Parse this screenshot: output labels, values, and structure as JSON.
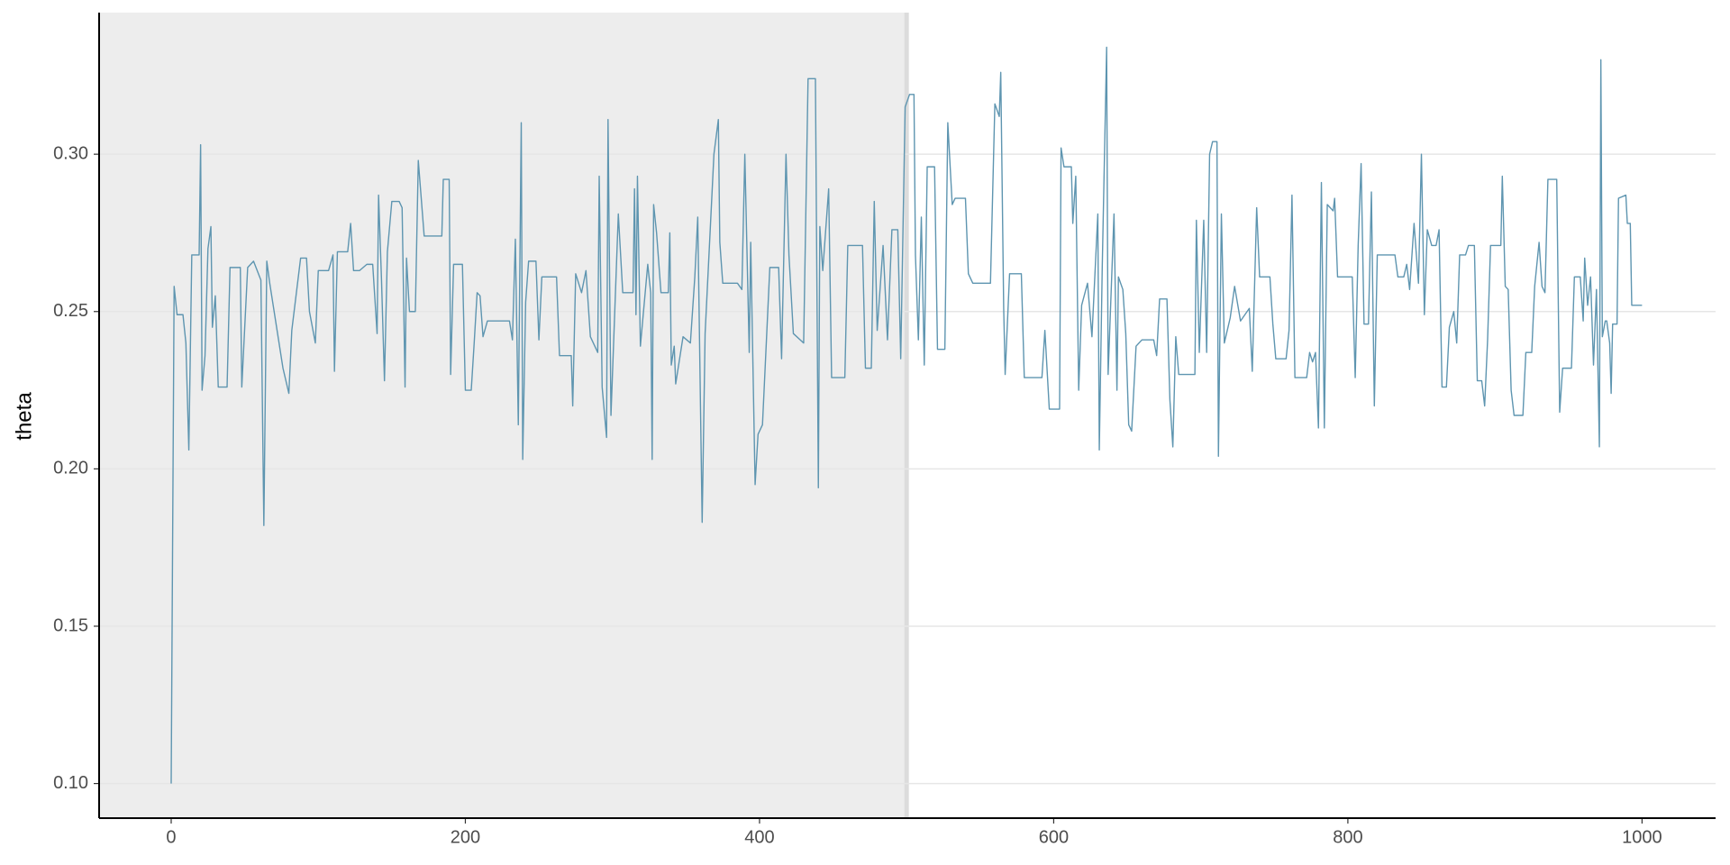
{
  "chart_data": {
    "type": "line",
    "y_label": "theta",
    "x": [
      0,
      2,
      4,
      8,
      10,
      12,
      14,
      19,
      20,
      21,
      23,
      25,
      27,
      28,
      30,
      32,
      38,
      40,
      47,
      48,
      52,
      56,
      61,
      63,
      65,
      67,
      72,
      76,
      80,
      82,
      88,
      92,
      94,
      98,
      100,
      107,
      110,
      111,
      113,
      120,
      122,
      124,
      128,
      133,
      137,
      140,
      141,
      143,
      145,
      147,
      150,
      155,
      157,
      159,
      160,
      162,
      166,
      168,
      172,
      184,
      185,
      189,
      190,
      192,
      198,
      200,
      204,
      206,
      208,
      210,
      212,
      215,
      230,
      232,
      234,
      236,
      238,
      239,
      241,
      243,
      248,
      250,
      252,
      262,
      264,
      272,
      273,
      275,
      279,
      282,
      285,
      290,
      291,
      293,
      296,
      297,
      299,
      304,
      307,
      314,
      315,
      316,
      317,
      319,
      324,
      326,
      327,
      328,
      330,
      333,
      338,
      339,
      340,
      342,
      343,
      348,
      353,
      356,
      358,
      361,
      363,
      369,
      372,
      373,
      375,
      385,
      388,
      390,
      393,
      394,
      397,
      399,
      402,
      407,
      413,
      415,
      418,
      420,
      423,
      430,
      433,
      438,
      440,
      441,
      443,
      447,
      449,
      458,
      460,
      470,
      472,
      476,
      478,
      480,
      484,
      487,
      490,
      494,
      496,
      499,
      502,
      505,
      506,
      508,
      510,
      512,
      514,
      519,
      521,
      526,
      528,
      531,
      533,
      540,
      542,
      545,
      557,
      560,
      563,
      564,
      566,
      567,
      570,
      578,
      580,
      592,
      594,
      597,
      604,
      605,
      607,
      612,
      613,
      615,
      617,
      619,
      623,
      626,
      630,
      631,
      633,
      636,
      637,
      641,
      643,
      644,
      647,
      649,
      651,
      653,
      656,
      660,
      668,
      670,
      672,
      677,
      679,
      681,
      683,
      685,
      696,
      697,
      699,
      702,
      704,
      706,
      708,
      711,
      712,
      714,
      716,
      720,
      723,
      727,
      733,
      735,
      738,
      740,
      747,
      749,
      751,
      758,
      760,
      762,
      764,
      772,
      774,
      776,
      778,
      780,
      782,
      784,
      786,
      790,
      791,
      793,
      803,
      805,
      807,
      809,
      811,
      814,
      816,
      818,
      820,
      832,
      834,
      838,
      840,
      842,
      845,
      848,
      850,
      852,
      854,
      857,
      860,
      862,
      864,
      867,
      869,
      872,
      874,
      876,
      880,
      882,
      886,
      888,
      891,
      893,
      895,
      897,
      904,
      905,
      907,
      909,
      911,
      913,
      919,
      921,
      925,
      927,
      930,
      932,
      934,
      936,
      942,
      944,
      946,
      952,
      954,
      958,
      960,
      961,
      963,
      965,
      967,
      969,
      971,
      972,
      973,
      975,
      976,
      978,
      979,
      980,
      983,
      984,
      989,
      990,
      992,
      993,
      1000
    ],
    "series": [
      {
        "name": "theta",
        "color": "#5e95b0",
        "values": [
          0.1,
          0.258,
          0.249,
          0.249,
          0.24,
          0.206,
          0.268,
          0.268,
          0.303,
          0.225,
          0.236,
          0.27,
          0.277,
          0.245,
          0.255,
          0.226,
          0.226,
          0.264,
          0.264,
          0.226,
          0.264,
          0.266,
          0.26,
          0.182,
          0.266,
          0.259,
          0.244,
          0.232,
          0.224,
          0.244,
          0.267,
          0.267,
          0.25,
          0.24,
          0.263,
          0.263,
          0.268,
          0.231,
          0.269,
          0.269,
          0.278,
          0.263,
          0.263,
          0.265,
          0.265,
          0.243,
          0.287,
          0.26,
          0.228,
          0.269,
          0.285,
          0.285,
          0.283,
          0.226,
          0.267,
          0.25,
          0.25,
          0.298,
          0.274,
          0.274,
          0.292,
          0.292,
          0.23,
          0.265,
          0.265,
          0.225,
          0.225,
          0.24,
          0.256,
          0.255,
          0.242,
          0.247,
          0.247,
          0.241,
          0.273,
          0.214,
          0.31,
          0.203,
          0.253,
          0.266,
          0.266,
          0.241,
          0.261,
          0.261,
          0.236,
          0.236,
          0.22,
          0.262,
          0.256,
          0.263,
          0.242,
          0.237,
          0.293,
          0.226,
          0.21,
          0.311,
          0.217,
          0.281,
          0.256,
          0.256,
          0.289,
          0.249,
          0.293,
          0.239,
          0.265,
          0.256,
          0.203,
          0.284,
          0.275,
          0.256,
          0.256,
          0.275,
          0.233,
          0.239,
          0.227,
          0.242,
          0.24,
          0.261,
          0.28,
          0.183,
          0.243,
          0.3,
          0.311,
          0.272,
          0.259,
          0.259,
          0.257,
          0.3,
          0.237,
          0.272,
          0.195,
          0.211,
          0.214,
          0.264,
          0.264,
          0.235,
          0.3,
          0.268,
          0.243,
          0.24,
          0.324,
          0.324,
          0.194,
          0.277,
          0.263,
          0.289,
          0.229,
          0.229,
          0.271,
          0.271,
          0.232,
          0.232,
          0.285,
          0.244,
          0.271,
          0.241,
          0.276,
          0.276,
          0.235,
          0.315,
          0.319,
          0.319,
          0.268,
          0.241,
          0.28,
          0.233,
          0.296,
          0.296,
          0.238,
          0.238,
          0.31,
          0.284,
          0.286,
          0.286,
          0.262,
          0.259,
          0.259,
          0.316,
          0.312,
          0.326,
          0.251,
          0.23,
          0.262,
          0.262,
          0.229,
          0.229,
          0.244,
          0.219,
          0.219,
          0.302,
          0.296,
          0.296,
          0.278,
          0.293,
          0.225,
          0.252,
          0.259,
          0.242,
          0.281,
          0.206,
          0.264,
          0.334,
          0.23,
          0.281,
          0.225,
          0.261,
          0.257,
          0.243,
          0.214,
          0.212,
          0.239,
          0.241,
          0.241,
          0.236,
          0.254,
          0.254,
          0.222,
          0.207,
          0.242,
          0.23,
          0.23,
          0.279,
          0.237,
          0.279,
          0.237,
          0.3,
          0.304,
          0.304,
          0.204,
          0.281,
          0.24,
          0.248,
          0.258,
          0.247,
          0.251,
          0.231,
          0.283,
          0.261,
          0.261,
          0.246,
          0.235,
          0.235,
          0.244,
          0.287,
          0.229,
          0.229,
          0.237,
          0.234,
          0.237,
          0.213,
          0.291,
          0.213,
          0.284,
          0.282,
          0.286,
          0.261,
          0.261,
          0.229,
          0.271,
          0.297,
          0.246,
          0.246,
          0.288,
          0.22,
          0.268,
          0.268,
          0.261,
          0.261,
          0.265,
          0.257,
          0.278,
          0.259,
          0.3,
          0.249,
          0.276,
          0.271,
          0.271,
          0.276,
          0.226,
          0.226,
          0.245,
          0.25,
          0.24,
          0.268,
          0.268,
          0.271,
          0.271,
          0.228,
          0.228,
          0.22,
          0.241,
          0.271,
          0.271,
          0.293,
          0.258,
          0.257,
          0.225,
          0.217,
          0.217,
          0.237,
          0.237,
          0.258,
          0.272,
          0.258,
          0.256,
          0.292,
          0.292,
          0.218,
          0.232,
          0.232,
          0.261,
          0.261,
          0.247,
          0.267,
          0.252,
          0.261,
          0.233,
          0.257,
          0.207,
          0.33,
          0.242,
          0.247,
          0.247,
          0.24,
          0.224,
          0.246,
          0.246,
          0.286,
          0.287,
          0.278,
          0.278,
          0.252,
          0.252
        ]
      }
    ],
    "warmup_end": 500,
    "xlim": [
      -49,
      1050
    ],
    "xticks": [
      0,
      200,
      400,
      600,
      800,
      1000
    ],
    "ylim": [
      0.089,
      0.345
    ],
    "yticks": [
      {
        "value": 0.1,
        "label": "0.10"
      },
      {
        "value": 0.15,
        "label": "0.15"
      },
      {
        "value": 0.2,
        "label": "0.20"
      },
      {
        "value": 0.25,
        "label": "0.25"
      },
      {
        "value": 0.3,
        "label": "0.30"
      }
    ],
    "grid": true
  }
}
